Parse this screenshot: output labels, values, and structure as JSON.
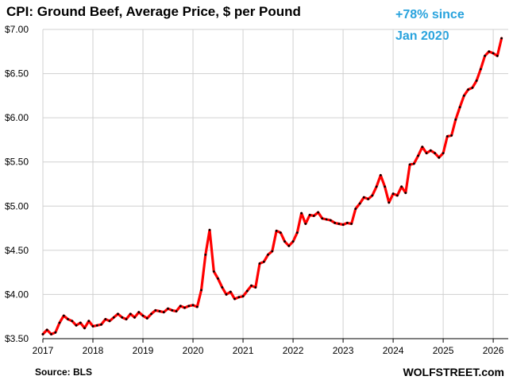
{
  "chart_data": {
    "type": "line",
    "title": "CPI: Ground Beef, Average Price, $ per Pound",
    "annotation": [
      "+78% since",
      "Jan 2020"
    ],
    "source": "Source: BLS",
    "brand": "WOLFSTREET.com",
    "y_ticks": [
      "$3.50",
      "$4.00",
      "$4.50",
      "$5.00",
      "$5.50",
      "$6.00",
      "$6.50",
      "$7.00"
    ],
    "y_tick_values": [
      3.5,
      4.0,
      4.5,
      5.0,
      5.5,
      6.0,
      6.5,
      7.0
    ],
    "ylim": [
      3.5,
      7.0
    ],
    "x_ticks": [
      "2017",
      "2018",
      "2019",
      "2020",
      "2021",
      "2022",
      "2023",
      "2024",
      "2025",
      "2026"
    ],
    "x_tick_values": [
      2017,
      2018,
      2019,
      2020,
      2021,
      2022,
      2023,
      2024,
      2025,
      2026
    ],
    "xlim": [
      2017.0,
      2026.3
    ],
    "grid": true,
    "line_color": "#ff0000",
    "marker_color": "#000000",
    "series": [
      {
        "x": [
          2017.0,
          2017.0833,
          2017.1667,
          2017.25,
          2017.3333,
          2017.4167,
          2017.5,
          2017.5833,
          2017.6667,
          2017.75,
          2017.8333,
          2017.9167,
          2018.0,
          2018.0833,
          2018.1667,
          2018.25,
          2018.3333,
          2018.4167,
          2018.5,
          2018.5833,
          2018.6667,
          2018.75,
          2018.8333,
          2018.9167,
          2019.0,
          2019.0833,
          2019.1667,
          2019.25,
          2019.3333,
          2019.4167,
          2019.5,
          2019.5833,
          2019.6667,
          2019.75,
          2019.8333,
          2019.9167,
          2020.0,
          2020.0833,
          2020.1667,
          2020.25,
          2020.3333,
          2020.4167,
          2020.5,
          2020.5833,
          2020.6667,
          2020.75,
          2020.8333,
          2020.9167,
          2021.0,
          2021.0833,
          2021.1667,
          2021.25,
          2021.3333,
          2021.4167,
          2021.5,
          2021.5833,
          2021.6667,
          2021.75,
          2021.8333,
          2021.9167,
          2022.0,
          2022.0833,
          2022.1667,
          2022.25,
          2022.3333,
          2022.4167,
          2022.5,
          2022.5833,
          2022.6667,
          2022.75,
          2022.8333,
          2022.9167,
          2023.0,
          2023.0833,
          2023.1667,
          2023.25,
          2023.3333,
          2023.4167,
          2023.5,
          2023.5833,
          2023.6667,
          2023.75,
          2023.8333,
          2023.9167,
          2024.0,
          2024.0833,
          2024.1667,
          2024.25,
          2024.3333,
          2024.4167,
          2024.5,
          2024.5833,
          2024.6667,
          2024.75,
          2024.8333,
          2024.9167,
          2025.0,
          2025.0833,
          2025.1667,
          2025.25,
          2025.3333,
          2025.4167,
          2025.5,
          2025.5833,
          2025.6667,
          2025.75,
          2025.8333,
          2025.9167,
          2026.0,
          2026.0833,
          2026.1667
        ],
        "values": [
          3.55,
          3.6,
          3.55,
          3.57,
          3.68,
          3.76,
          3.72,
          3.7,
          3.65,
          3.68,
          3.62,
          3.7,
          3.64,
          3.65,
          3.66,
          3.72,
          3.7,
          3.74,
          3.78,
          3.74,
          3.72,
          3.78,
          3.74,
          3.8,
          3.76,
          3.73,
          3.78,
          3.82,
          3.81,
          3.8,
          3.84,
          3.82,
          3.81,
          3.87,
          3.85,
          3.87,
          3.88,
          3.86,
          4.05,
          4.45,
          4.73,
          4.26,
          4.18,
          4.08,
          4.0,
          4.03,
          3.95,
          3.97,
          3.98,
          4.04,
          4.1,
          4.08,
          4.35,
          4.37,
          4.45,
          4.49,
          4.72,
          4.7,
          4.6,
          4.55,
          4.6,
          4.7,
          4.92,
          4.8,
          4.9,
          4.89,
          4.93,
          4.86,
          4.85,
          4.84,
          4.81,
          4.8,
          4.79,
          4.81,
          4.8,
          4.97,
          5.03,
          5.1,
          5.08,
          5.12,
          5.22,
          5.35,
          5.22,
          5.04,
          5.14,
          5.12,
          5.22,
          5.15,
          5.47,
          5.48,
          5.57,
          5.67,
          5.6,
          5.63,
          5.6,
          5.55,
          5.6,
          5.79,
          5.8,
          5.98,
          6.12,
          6.25,
          6.32,
          6.34,
          6.42,
          6.55,
          6.7,
          6.75,
          6.73,
          6.7,
          6.9
        ]
      }
    ]
  }
}
